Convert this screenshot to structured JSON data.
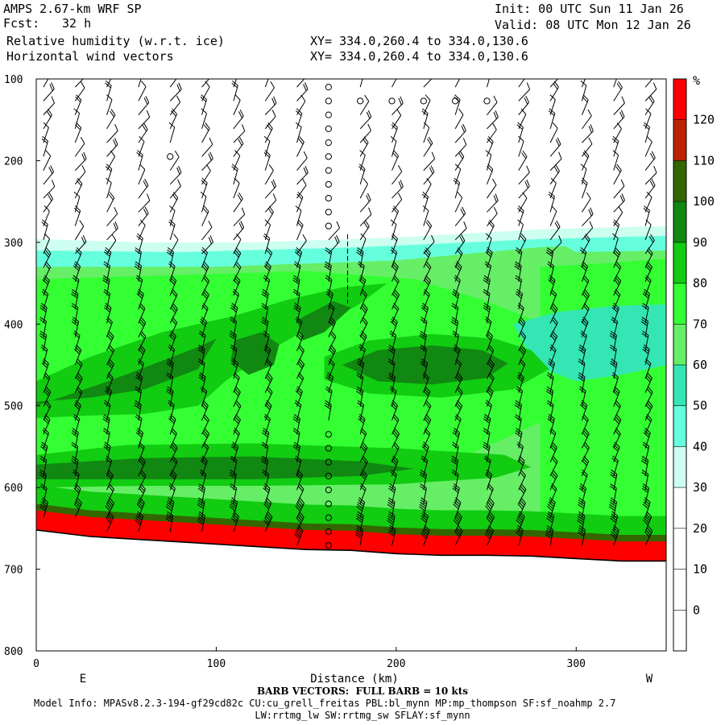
{
  "header": {
    "model": "AMPS 2.67-km WRF SP",
    "fcst_label": "Fcst:",
    "fcst_value": "32 h",
    "field1": "Relative humidity (w.r.t. ice)",
    "field2": "Horizontal wind vectors",
    "init": "Init: 00 UTC Sun 11 Jan 26",
    "valid": "Valid: 08 UTC Mon 12 Jan 26",
    "xy1": "XY= 334.0,260.4 to 334.0,130.6",
    "xy2": "XY= 334.0,260.4 to 334.0,130.6"
  },
  "footer": {
    "barb_note": "BARB VECTORS:  FULL BARB = 10 kts",
    "model_info": "Model Info: MPASv8.2.3-194-gf29cd82c CU:cu_grell_freitas PBL:bl_mynn MP:mp_thompson SF:sf_noahmp 2.7",
    "model_info2": "LW:rrtmg_lw SW:rrtmg_sw SFLAY:sf_mynn"
  },
  "colors": {
    "rh_0_30": "#ffffff",
    "rh_30_40": "#ccfff0",
    "rh_40_50": "#66ffdd",
    "rh_50_60": "#33e6b3",
    "rh_60_70": "#66ee66",
    "rh_70_80": "#33ff33",
    "rh_80_90": "#11cc11",
    "rh_90_100": "#118811",
    "rh_100_110": "#336600",
    "rh_110_120": "#bb2200",
    "rh_120_plus": "#ff0000"
  },
  "chart_data": {
    "type": "cross-section",
    "xlabel": "Distance (km)",
    "ylabel": "",
    "x_range": [
      0,
      350
    ],
    "y_range": [
      100,
      800
    ],
    "y_inverted": true,
    "x_ticks": [
      0,
      100,
      200,
      300
    ],
    "y_ticks": [
      100,
      200,
      300,
      400,
      500,
      600,
      700,
      800
    ],
    "x_end_labels": {
      "left": "E",
      "right": "W"
    },
    "colorbar": {
      "unit": "%",
      "levels": [
        0,
        10,
        20,
        30,
        40,
        50,
        60,
        70,
        80,
        90,
        100,
        110,
        120
      ],
      "colors": [
        "#ffffff",
        "#ffffff",
        "#ffffff",
        "#ccfff0",
        "#66ffdd",
        "#33e6b3",
        "#66ee66",
        "#33ff33",
        "#11cc11",
        "#118811",
        "#336600",
        "#bb2200",
        "#ff0000"
      ]
    },
    "terrain_pressure": [
      [
        0,
        652
      ],
      [
        30,
        660
      ],
      [
        60,
        664
      ],
      [
        90,
        668
      ],
      [
        120,
        672
      ],
      [
        150,
        676
      ],
      [
        175,
        677
      ],
      [
        200,
        681
      ],
      [
        225,
        683
      ],
      [
        250,
        683
      ],
      [
        275,
        684
      ],
      [
        300,
        687
      ],
      [
        325,
        690
      ],
      [
        350,
        690
      ]
    ]
  }
}
